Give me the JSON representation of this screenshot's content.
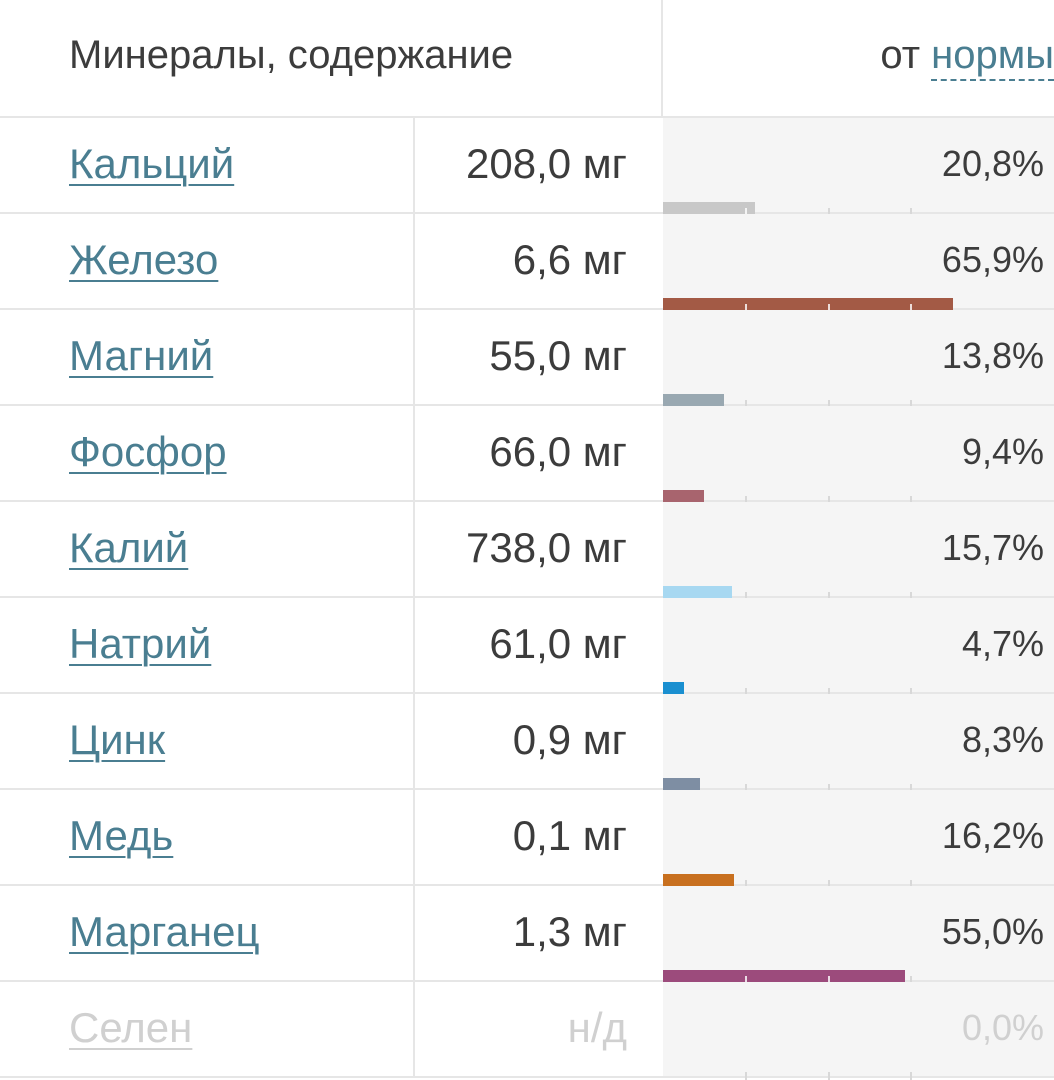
{
  "header": {
    "title": "Минералы, содержание",
    "right_prefix": "от",
    "right_link": "нормы"
  },
  "rows": [
    {
      "name": "Кальций",
      "amount": "208,0 мг",
      "pct": "20,8%",
      "value": 20.8,
      "color": "#c8c8c8"
    },
    {
      "name": "Железо",
      "amount": "6,6 мг",
      "pct": "65,9%",
      "value": 65.9,
      "color": "#a35a45"
    },
    {
      "name": "Магний",
      "amount": "55,0 мг",
      "pct": "13,8%",
      "value": 13.8,
      "color": "#99a8b1"
    },
    {
      "name": "Фосфор",
      "amount": "66,0 мг",
      "pct": "9,4%",
      "value": 9.4,
      "color": "#a8646e"
    },
    {
      "name": "Калий",
      "amount": "738,0 мг",
      "pct": "15,7%",
      "value": 15.7,
      "color": "#a7d8f1"
    },
    {
      "name": "Натрий",
      "amount": "61,0 мг",
      "pct": "4,7%",
      "value": 4.7,
      "color": "#1a8fd0"
    },
    {
      "name": "Цинк",
      "amount": "0,9 мг",
      "pct": "8,3%",
      "value": 8.3,
      "color": "#7e8ea3"
    },
    {
      "name": "Медь",
      "amount": "0,1 мг",
      "pct": "16,2%",
      "value": 16.2,
      "color": "#c8701f"
    },
    {
      "name": "Марганец",
      "amount": "1,3 мг",
      "pct": "55,0%",
      "value": 55.0,
      "color": "#9c4b7c"
    },
    {
      "name": "Селен",
      "amount": "н/д",
      "pct": "0,0%",
      "value": 0,
      "color": "#cccccc",
      "faded": true
    }
  ]
}
